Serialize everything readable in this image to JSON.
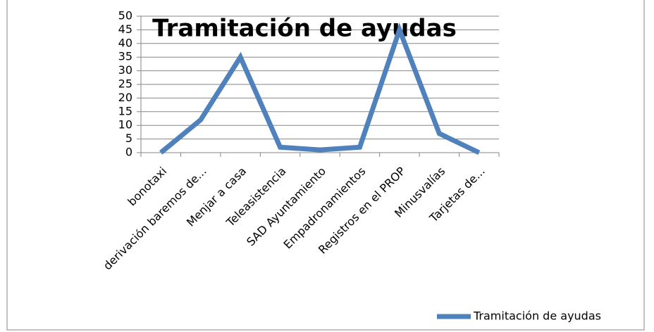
{
  "chart_data": {
    "type": "line",
    "title": "Tramitación de ayudas",
    "categories": [
      "bonotaxi",
      "derivación baremos de...",
      "Menjar a casa",
      "Teleasistencia",
      "SAD Ayuntamiento",
      "Empadronamientos",
      "Registros en el PROP",
      "Minusvalías",
      "Tarjetas de..."
    ],
    "series": [
      {
        "name": "Tramitación de ayudas",
        "color": "#4f81bd",
        "values": [
          0,
          12,
          35,
          2,
          1,
          2,
          45,
          7,
          0
        ]
      }
    ],
    "ylim": [
      0,
      50
    ],
    "yticks": [
      0,
      5,
      10,
      15,
      20,
      25,
      30,
      35,
      40,
      45,
      50
    ],
    "grid": true,
    "legend": "bottom-right"
  }
}
